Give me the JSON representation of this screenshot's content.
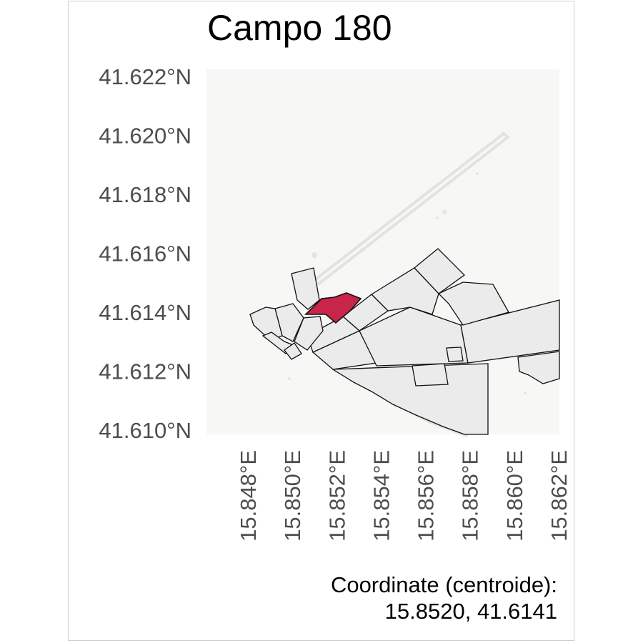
{
  "title": "Campo 180",
  "caption": {
    "line1": "Coordinate (centroide):",
    "line2": "15.8520, 41.6141"
  },
  "map": {
    "lat_range": [
      41.61,
      41.622
    ],
    "lon_range": [
      15.848,
      15.862
    ],
    "y_ticks": [
      {
        "value": 41.622,
        "label": "41.622°N"
      },
      {
        "value": 41.62,
        "label": "41.620°N"
      },
      {
        "value": 41.618,
        "label": "41.618°N"
      },
      {
        "value": 41.616,
        "label": "41.616°N"
      },
      {
        "value": 41.614,
        "label": "41.614°N"
      },
      {
        "value": 41.612,
        "label": "41.612°N"
      },
      {
        "value": 41.61,
        "label": "41.610°N"
      }
    ],
    "x_ticks": [
      {
        "value": 15.848,
        "label": "15.848°E"
      },
      {
        "value": 15.85,
        "label": "15.850°E"
      },
      {
        "value": 15.852,
        "label": "15.852°E"
      },
      {
        "value": 15.854,
        "label": "15.854°E"
      },
      {
        "value": 15.856,
        "label": "15.856°E"
      },
      {
        "value": 15.858,
        "label": "15.858°E"
      },
      {
        "value": 15.86,
        "label": "15.860°E"
      },
      {
        "value": 15.862,
        "label": "15.862°E"
      }
    ],
    "colors": {
      "panel_background": "#f7f7f5",
      "parcel_fill": "#ebebeb",
      "parcel_stroke": "#111111",
      "selected_fill": "#c8254a",
      "tick_text": "#4d4d4d"
    },
    "selected_parcel": "Campo 180"
  }
}
